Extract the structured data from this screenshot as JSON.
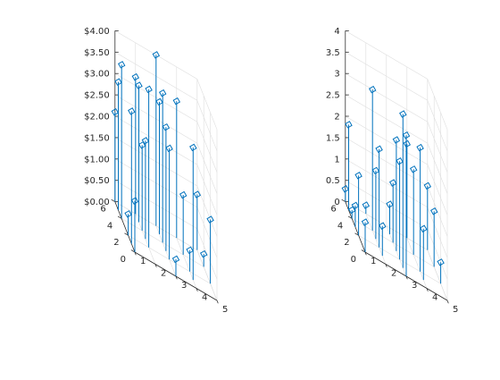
{
  "colors": {
    "stem": "#0072bd",
    "grid": "#dedede",
    "axis": "#262626",
    "background": "#ffffff"
  },
  "chart_data": [
    {
      "type": "stem3",
      "zlim": [
        0,
        4
      ],
      "xlim": [
        1,
        5
      ],
      "ylim": [
        0,
        6
      ],
      "grid": true,
      "box": false,
      "marker": "open-square",
      "x_ticks": [
        {
          "value": 1,
          "label": "1"
        },
        {
          "value": 2,
          "label": "2"
        },
        {
          "value": 3,
          "label": "3"
        },
        {
          "value": 4,
          "label": "4"
        },
        {
          "value": 5,
          "label": "5"
        }
      ],
      "y_ticks": [
        {
          "value": 0,
          "label": "0"
        },
        {
          "value": 2,
          "label": "2"
        },
        {
          "value": 4,
          "label": "4"
        },
        {
          "value": 6,
          "label": "6"
        }
      ],
      "z_ticks": [
        {
          "value": 0,
          "label": "$0.00"
        },
        {
          "value": 0.5,
          "label": "$0.50"
        },
        {
          "value": 1,
          "label": "$1.00"
        },
        {
          "value": 1.5,
          "label": "$1.50"
        },
        {
          "value": 2,
          "label": "$2.00"
        },
        {
          "value": 2.5,
          "label": "$2.50"
        },
        {
          "value": 3,
          "label": "$3.00"
        },
        {
          "value": 3.5,
          "label": "$3.50"
        },
        {
          "value": 4,
          "label": "$4.00"
        }
      ],
      "points": [
        {
          "x": 1,
          "y": 6,
          "z": 2.1
        },
        {
          "x": 1,
          "y": 5,
          "z": 3.0
        },
        {
          "x": 1,
          "y": 4,
          "z": 3.6
        },
        {
          "x": 1,
          "y": 2,
          "z": 0.5
        },
        {
          "x": 1,
          "y": 1,
          "z": 3.1
        },
        {
          "x": 1,
          "y": 0,
          "z": 1.2
        },
        {
          "x": 2,
          "y": 6,
          "z": 3.2
        },
        {
          "x": 2,
          "y": 5,
          "z": 3.2
        },
        {
          "x": 2,
          "y": 4,
          "z": 2.0
        },
        {
          "x": 2,
          "y": 3,
          "z": 2.3
        },
        {
          "x": 2,
          "y": 2,
          "z": 3.7
        },
        {
          "x": 3,
          "y": 6,
          "z": 4.0
        },
        {
          "x": 3,
          "y": 5,
          "z": 3.1
        },
        {
          "x": 3,
          "y": 4,
          "z": 3.5
        },
        {
          "x": 3,
          "y": 3,
          "z": 2.9
        },
        {
          "x": 3,
          "y": 2,
          "z": 2.6
        },
        {
          "x": 3,
          "y": 0,
          "z": 0.4
        },
        {
          "x": 4,
          "y": 6,
          "z": 3.2
        },
        {
          "x": 4,
          "y": 4,
          "z": 1.4
        },
        {
          "x": 4,
          "y": 2,
          "z": 0.5
        },
        {
          "x": 4,
          "y": 1,
          "z": 3.1
        },
        {
          "x": 5,
          "y": 6,
          "z": 1.3
        },
        {
          "x": 5,
          "y": 4,
          "z": 0.3
        },
        {
          "x": 5,
          "y": 2,
          "z": 1.5
        }
      ]
    },
    {
      "type": "stem3",
      "zlim": [
        0,
        4
      ],
      "xlim": [
        1,
        5
      ],
      "ylim": [
        0,
        6
      ],
      "grid": true,
      "box": false,
      "marker": "open-square",
      "x_ticks": [
        {
          "value": 1,
          "label": "1"
        },
        {
          "value": 2,
          "label": "2"
        },
        {
          "value": 3,
          "label": "3"
        },
        {
          "value": 4,
          "label": "4"
        },
        {
          "value": 5,
          "label": "5"
        }
      ],
      "y_ticks": [
        {
          "value": 0,
          "label": "0"
        },
        {
          "value": 2,
          "label": "2"
        },
        {
          "value": 4,
          "label": "4"
        },
        {
          "value": 6,
          "label": "6"
        }
      ],
      "z_ticks": [
        {
          "value": 0,
          "label": "0"
        },
        {
          "value": 0.5,
          "label": "0.5"
        },
        {
          "value": 1,
          "label": "1"
        },
        {
          "value": 1.5,
          "label": "1.5"
        },
        {
          "value": 2,
          "label": "2"
        },
        {
          "value": 2.5,
          "label": "2.5"
        },
        {
          "value": 3,
          "label": "3"
        },
        {
          "value": 3.5,
          "label": "3.5"
        },
        {
          "value": 4,
          "label": "4"
        }
      ],
      "points": [
        {
          "x": 1,
          "y": 6,
          "z": 0.3
        },
        {
          "x": 1,
          "y": 5,
          "z": 2.0
        },
        {
          "x": 1,
          "y": 4,
          "z": 0.2
        },
        {
          "x": 1,
          "y": 3,
          "z": 0.5
        },
        {
          "x": 1,
          "y": 2,
          "z": 1.4
        },
        {
          "x": 1,
          "y": 0,
          "z": 0.7
        },
        {
          "x": 2,
          "y": 6,
          "z": 0.2
        },
        {
          "x": 2,
          "y": 4,
          "z": 3.3
        },
        {
          "x": 2,
          "y": 3,
          "z": 1.6
        },
        {
          "x": 2,
          "y": 2,
          "z": 2.3
        },
        {
          "x": 2,
          "y": 1,
          "z": 0.7
        },
        {
          "x": 3,
          "y": 5,
          "z": 0.7
        },
        {
          "x": 3,
          "y": 4,
          "z": 1.4
        },
        {
          "x": 3,
          "y": 3,
          "z": 2.6
        },
        {
          "x": 3,
          "y": 2,
          "z": 2.3
        },
        {
          "x": 3,
          "y": 1,
          "z": 3.6
        },
        {
          "x": 3,
          "y": 0,
          "z": 3.3
        },
        {
          "x": 4,
          "y": 6,
          "z": 2.2
        },
        {
          "x": 4,
          "y": 4,
          "z": 2.0
        },
        {
          "x": 4,
          "y": 2,
          "z": 2.9
        },
        {
          "x": 4,
          "y": 1,
          "z": 1.2
        },
        {
          "x": 5,
          "y": 6,
          "z": 1.5
        },
        {
          "x": 5,
          "y": 4,
          "z": 1.3
        },
        {
          "x": 5,
          "y": 2,
          "z": 0.5
        }
      ]
    }
  ]
}
